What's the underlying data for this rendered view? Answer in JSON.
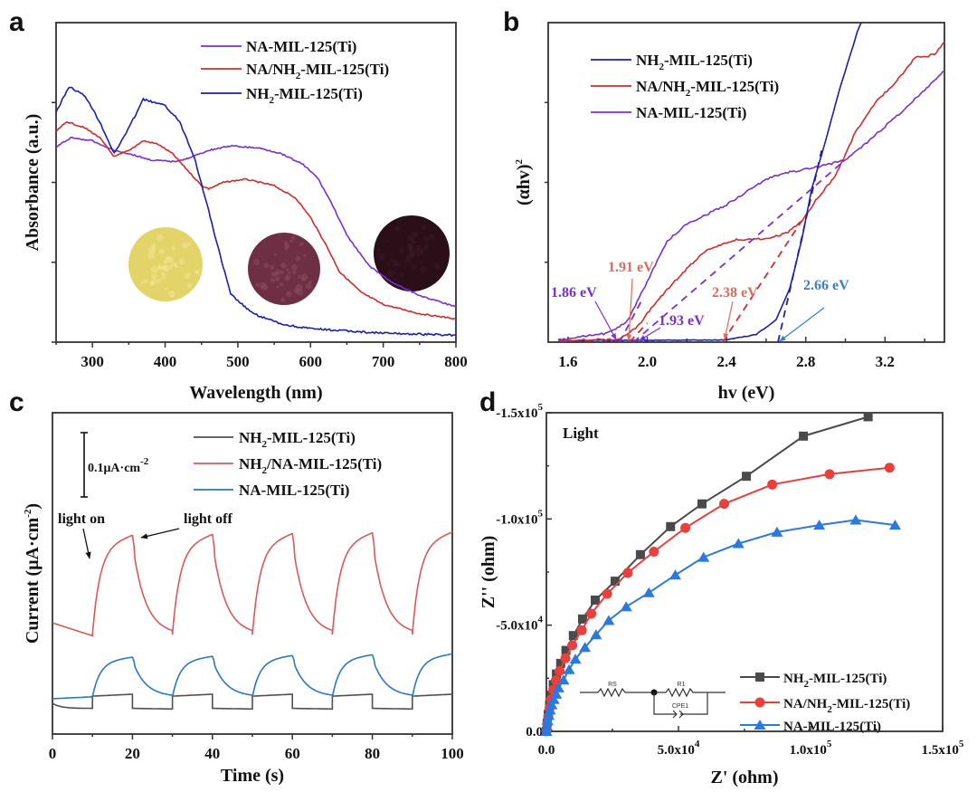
{
  "chart_data": [
    {
      "panel": "a",
      "type": "line",
      "title": "",
      "xlabel": "Wavelength (nm)",
      "ylabel": "Absorbance (a.u.)",
      "xlim": [
        250,
        800
      ],
      "ylim": [
        0,
        1
      ],
      "xticks": [
        300,
        400,
        500,
        600,
        700,
        800
      ],
      "yticks_labeled": false,
      "legend": "top-right",
      "grid": false,
      "series": [
        {
          "name": "NA-MIL-125(Ti)",
          "label_main": "NA-MIL-125(Ti)",
          "color": "#7b2fd0",
          "x": [
            250,
            270,
            300,
            330,
            350,
            380,
            410,
            430,
            460,
            490,
            530,
            560,
            590,
            610,
            630,
            650,
            680,
            710,
            750,
            800
          ],
          "y": [
            0.61,
            0.64,
            0.63,
            0.6,
            0.59,
            0.57,
            0.565,
            0.574,
            0.6,
            0.614,
            0.607,
            0.59,
            0.556,
            0.513,
            0.43,
            0.334,
            0.24,
            0.19,
            0.146,
            0.11
          ]
        },
        {
          "name": "NA/NH2-MIL-125(Ti)",
          "color": "#d42a2a",
          "x": [
            250,
            265,
            290,
            310,
            330,
            350,
            370,
            390,
            410,
            430,
            450,
            460,
            480,
            510,
            550,
            580,
            600,
            620,
            640,
            670,
            700,
            750,
            800
          ],
          "y": [
            0.66,
            0.69,
            0.67,
            0.64,
            0.58,
            0.6,
            0.63,
            0.62,
            0.59,
            0.54,
            0.49,
            0.48,
            0.5,
            0.51,
            0.49,
            0.45,
            0.39,
            0.31,
            0.22,
            0.155,
            0.118,
            0.089,
            0.073
          ]
        },
        {
          "name": "NH2-MIL-125(Ti)",
          "color": "#1a1fb0",
          "x": [
            250,
            268,
            290,
            310,
            330,
            350,
            370,
            400,
            420,
            440,
            460,
            470,
            490,
            520,
            560,
            600,
            700,
            800
          ],
          "y": [
            0.72,
            0.8,
            0.77,
            0.69,
            0.59,
            0.67,
            0.76,
            0.74,
            0.69,
            0.58,
            0.41,
            0.32,
            0.15,
            0.09,
            0.056,
            0.042,
            0.028,
            0.022
          ]
        }
      ],
      "legend_entries": [
        {
          "pre": "NA-MIL-125(Ti)",
          "sub": "",
          "post": "",
          "color": "#7b2fd0"
        },
        {
          "pre": "NA/NH",
          "sub": "2",
          "post": "-MIL-125(Ti)",
          "color": "#d42a2a"
        },
        {
          "pre": "NH",
          "sub": "2",
          "post": "-MIL-125(Ti)",
          "color": "#1a1fb0"
        }
      ],
      "insets": [
        {
          "name": "NH2-MIL-125(Ti) powder photo",
          "color": "#e3d46a"
        },
        {
          "name": "NA/NH2-MIL-125(Ti) powder photo",
          "color": "#6e2f45"
        },
        {
          "name": "NA-MIL-125(Ti) powder photo",
          "color": "#2a0f18"
        }
      ]
    },
    {
      "panel": "b",
      "type": "line",
      "title": "",
      "xlabel": "hv (eV)",
      "ylabel": "(αhv)",
      "ylabel_sup": "2",
      "xlim": [
        1.5,
        3.5
      ],
      "ylim": [
        0,
        1
      ],
      "xticks": [
        1.6,
        2.0,
        2.4,
        2.8,
        3.2
      ],
      "yticks_labeled": false,
      "legend": "top-left",
      "grid": false,
      "series": [
        {
          "name": "NH2-MIL-125(Ti)",
          "color": "#1a1fb0",
          "x": [
            1.55,
            2.4,
            2.55,
            2.65,
            2.72,
            2.78,
            2.83,
            2.9,
            2.97,
            3.06,
            3.08
          ],
          "y": [
            0.005,
            0.007,
            0.024,
            0.07,
            0.17,
            0.32,
            0.48,
            0.63,
            0.79,
            0.97,
            1.0
          ]
        },
        {
          "name": "NA/NH2-MIL-125(Ti)",
          "color": "#d42a2a",
          "x": [
            1.55,
            1.85,
            1.9,
            1.95,
            2.0,
            2.1,
            2.2,
            2.3,
            2.45,
            2.6,
            2.7,
            2.78,
            2.85,
            2.95,
            3.05,
            3.15,
            3.25,
            3.35,
            3.45,
            3.5
          ],
          "y": [
            0.005,
            0.009,
            0.024,
            0.047,
            0.09,
            0.165,
            0.23,
            0.29,
            0.32,
            0.325,
            0.34,
            0.377,
            0.443,
            0.52,
            0.656,
            0.75,
            0.81,
            0.89,
            0.9,
            0.94
          ]
        },
        {
          "name": "NA-MIL-125(Ti)",
          "color": "#7b2fd0",
          "x": [
            1.55,
            1.8,
            1.9,
            1.95,
            2.0,
            2.1,
            2.2,
            2.4,
            2.6,
            2.7,
            2.85,
            3.0,
            3.1,
            3.2,
            3.3,
            3.4,
            3.5
          ],
          "y": [
            0.006,
            0.028,
            0.066,
            0.127,
            0.19,
            0.316,
            0.37,
            0.43,
            0.51,
            0.53,
            0.547,
            0.57,
            0.62,
            0.675,
            0.73,
            0.79,
            0.85
          ]
        }
      ],
      "tangents": [
        {
          "color": "#7b2fd0",
          "x": [
            1.86,
            1.98
          ],
          "y": [
            0,
            0.14
          ]
        },
        {
          "color": "#7b2fd0",
          "x": [
            1.93,
            2.98
          ],
          "y": [
            0,
            0.56
          ]
        },
        {
          "color": "#d42a2a",
          "x": [
            1.91,
            2.0
          ],
          "y": [
            0,
            0.06
          ]
        },
        {
          "color": "#d42a2a",
          "x": [
            2.38,
            2.78
          ],
          "y": [
            0,
            0.38
          ]
        },
        {
          "color": "#1a1fb0",
          "x": [
            2.66,
            2.88
          ],
          "y": [
            0,
            0.6
          ]
        }
      ],
      "legend_entries": [
        {
          "pre": "NH",
          "sub": "2",
          "post": "-MIL-125(Ti)",
          "color": "#1a1fb0"
        },
        {
          "pre": "NA/NH",
          "sub": "2",
          "post": "-MIL-125(Ti)",
          "color": "#d42a2a"
        },
        {
          "pre": "NA-MIL-125(Ti)",
          "sub": "",
          "post": "",
          "color": "#7b2fd0"
        }
      ],
      "annotations": [
        {
          "text": "1.91 eV",
          "color": "#e06b5a",
          "points_to_x": 1.91
        },
        {
          "text": "1.86 eV",
          "color": "#7b2fd0",
          "points_to_x": 1.86
        },
        {
          "text": "1.93 eV",
          "color": "#7b2fd0",
          "points_to_x": 1.93
        },
        {
          "text": "2.38 eV",
          "color": "#e06b5a",
          "points_to_x": 2.38
        },
        {
          "text": "2.66 eV",
          "color": "#3a7fc0",
          "points_to_x": 2.66
        }
      ]
    },
    {
      "panel": "c",
      "type": "line",
      "title": "",
      "xlabel": "Time (s)",
      "ylabel": "Current (μA·cm",
      "ylabel_sup": "-2",
      "ylabel_close": ")",
      "xlim": [
        0,
        100
      ],
      "ylim": [
        0,
        0.5
      ],
      "xticks": [
        0,
        20,
        40,
        60,
        80,
        100
      ],
      "yticks_labeled": false,
      "scale_bar": {
        "value": 0.1,
        "label": "0.1μA·cm",
        "label_sup": "-2"
      },
      "light_cycle": {
        "on_times": [
          10,
          30,
          50,
          70,
          90
        ],
        "off_times": [
          20,
          40,
          60,
          80
        ]
      },
      "annotations": [
        {
          "text": "light on"
        },
        {
          "text": "light off"
        }
      ],
      "legend": "top-right",
      "grid": false,
      "series": [
        {
          "name": "NH2-MIL-125(Ti)",
          "color": "#505050",
          "dark": 0.04,
          "light": 0.062,
          "start": 0.048
        },
        {
          "name": "NH2/NA-MIL-125(Ti)",
          "color": "#d9595b",
          "dark": 0.16,
          "light": 0.31,
          "start": 0.173
        },
        {
          "name": "NA-MIL-125(Ti)",
          "color": "#2a78c0",
          "dark": 0.058,
          "light": 0.12,
          "start": 0.055
        }
      ],
      "legend_entries": [
        {
          "pre": "NH",
          "sub": "2",
          "post": "-MIL-125(Ti)",
          "color": "#505050"
        },
        {
          "pre": "NH",
          "sub": "2",
          "post": "/NA-MIL-125(Ti)",
          "color": "#d9595b"
        },
        {
          "pre": "NA-MIL-125(Ti)",
          "sub": "",
          "post": "",
          "color": "#2a78c0"
        }
      ]
    },
    {
      "panel": "d",
      "type": "scatter",
      "title": "",
      "xlabel": "Z' (ohm)",
      "ylabel": "Z'' (ohm)",
      "xlim": [
        0,
        150000
      ],
      "ylim": [
        0,
        -150000
      ],
      "xticks": [
        {
          "v": 0,
          "m": "0.0",
          "e": ""
        },
        {
          "v": 50000,
          "m": "5.0x10",
          "e": "4"
        },
        {
          "v": 100000,
          "m": "1.0x10",
          "e": "5"
        },
        {
          "v": 150000,
          "m": "1.5x10",
          "e": "5"
        }
      ],
      "yticks": [
        {
          "v": 0,
          "m": "0.0",
          "e": ""
        },
        {
          "v": -50000,
          "m": "-5.0x10",
          "e": "4"
        },
        {
          "v": -100000,
          "m": "-1.0x10",
          "e": "5"
        },
        {
          "v": -150000,
          "m": "-1.5x10",
          "e": "5"
        }
      ],
      "annotation": "Light",
      "circuit": {
        "elements": [
          "RS",
          "R1",
          "CPE1"
        ]
      },
      "legend": "bottom-right",
      "grid": false,
      "series": [
        {
          "name": "NH2-MIL-125(Ti)",
          "marker": "square",
          "color": "#4a4a4a",
          "x": [
            0,
            300,
            700,
            1200,
            1800,
            2600,
            3800,
            5400,
            7400,
            10200,
            13700,
            18500,
            26000,
            35600,
            47000,
            58900,
            75700,
            97300,
            121800
          ],
          "y": [
            0,
            -4000,
            -8000,
            -12500,
            -17000,
            -22000,
            -27000,
            -32000,
            -38100,
            -45100,
            -52900,
            -61800,
            -70700,
            -83200,
            -96400,
            -107100,
            -120100,
            -139000,
            -148100
          ]
        },
        {
          "name": "NA/NH2-MIL-125(Ti)",
          "marker": "circle",
          "color": "#e8403c",
          "x": [
            0,
            300,
            700,
            1200,
            1800,
            2600,
            3600,
            5000,
            7200,
            9800,
            13400,
            17000,
            23000,
            30800,
            40700,
            52600,
            67300,
            85500,
            107200,
            129900
          ],
          "y": [
            0,
            -3500,
            -7000,
            -11000,
            -15000,
            -19500,
            -24000,
            -28400,
            -34400,
            -40500,
            -47600,
            -55400,
            -64700,
            -74600,
            -84600,
            -95800,
            -107100,
            -116200,
            -121100,
            -124100
          ]
        },
        {
          "name": "NA-MIL-125(Ti)",
          "marker": "triangle",
          "color": "#2a78e0",
          "x": [
            0,
            200,
            500,
            900,
            1400,
            2000,
            2800,
            3700,
            4600,
            6500,
            8600,
            11000,
            14600,
            18800,
            23600,
            30200,
            38800,
            48800,
            59500,
            72700,
            87300,
            103300,
            117100,
            132000
          ],
          "y": [
            0,
            -2500,
            -5000,
            -7500,
            -10000,
            -12500,
            -15000,
            -17500,
            -20500,
            -24200,
            -29100,
            -34000,
            -39500,
            -45500,
            -52200,
            -58700,
            -65300,
            -73600,
            -82000,
            -88400,
            -93800,
            -97100,
            -99500,
            -97100
          ]
        }
      ],
      "legend_entries": [
        {
          "pre": "NH",
          "sub": "2",
          "post": "-MIL-125(Ti)",
          "color": "#4a4a4a",
          "marker": "square"
        },
        {
          "pre": "NA/NH",
          "sub": "2",
          "post": "-MIL-125(Ti)",
          "color": "#e8403c",
          "marker": "circle"
        },
        {
          "pre": "NA-MIL-125(Ti)",
          "sub": "",
          "post": "",
          "color": "#2a78e0",
          "marker": "triangle"
        }
      ]
    }
  ],
  "panel_labels": [
    "a",
    "b",
    "c",
    "d"
  ]
}
